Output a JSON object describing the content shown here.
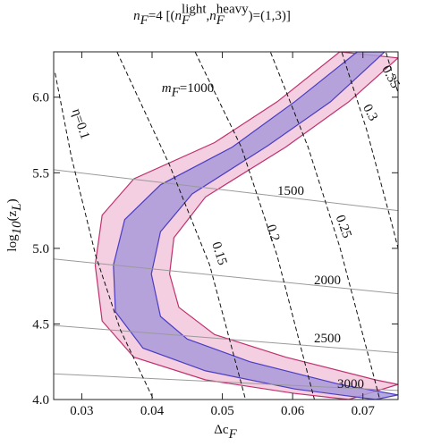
{
  "chart_data": {
    "type": "contour",
    "title": [
      "n",
      "F",
      "=4 [(",
      "n",
      "F",
      "light",
      ", ",
      "n",
      "F",
      "heavy",
      ")=(1,3)]"
    ],
    "x_label": [
      "Δc",
      "F"
    ],
    "y_label": [
      "log",
      "10",
      "(z",
      "L",
      ")"
    ],
    "xlim": [
      0.026,
      0.075
    ],
    "ylim": [
      4.0,
      6.3
    ],
    "xticks": [
      0.03,
      0.04,
      0.05,
      0.06,
      0.07
    ],
    "yticks": [
      {
        "value": 4,
        "label": "4.0"
      },
      4.5,
      {
        "value": 5,
        "label": "5.0"
      },
      5.5,
      {
        "value": 6,
        "label": "6.0"
      }
    ],
    "bands": [
      {
        "fill": "#f2c6dc",
        "color": "#c0306e",
        "x": [
          0.0667,
          0.0578,
          0.0489,
          0.0374,
          0.0329,
          0.0319,
          0.0329,
          0.0374,
          0.0476,
          0.0603,
          0.068,
          0.075,
          0.0718,
          0.059,
          0.0489,
          0.0438,
          0.0425,
          0.0431,
          0.0476,
          0.059,
          0.068,
          0.075
        ],
        "y": [
          6.3,
          5.97,
          5.7,
          5.46,
          5.22,
          4.89,
          4.52,
          4.28,
          4.13,
          4.04,
          4.0,
          4.1,
          4.13,
          4.28,
          4.43,
          4.61,
          4.83,
          5.07,
          5.34,
          5.67,
          5.97,
          6.26
        ]
      },
      {
        "fill": "#a99ad8",
        "color": "#4a3cc4",
        "x": [
          0.0692,
          0.0603,
          0.0514,
          0.0412,
          0.0361,
          0.0345,
          0.0348,
          0.0387,
          0.0476,
          0.0603,
          0.0718,
          0.075,
          0.0667,
          0.0539,
          0.045,
          0.0412,
          0.0399,
          0.0412,
          0.0457,
          0.0565,
          0.0654,
          0.0731
        ],
        "y": [
          6.3,
          5.97,
          5.67,
          5.42,
          5.19,
          4.89,
          4.58,
          4.34,
          4.19,
          4.07,
          4.0,
          4.03,
          4.1,
          4.25,
          4.4,
          4.55,
          4.83,
          5.11,
          5.36,
          5.68,
          5.97,
          6.3
        ]
      }
    ],
    "eta_contours": [
      {
        "label": "η=0.1",
        "x": [
          0.0262,
          0.0285,
          0.032,
          0.0355,
          0.0402
        ],
        "y": [
          6.16,
          5.61,
          4.95,
          4.46,
          4.0
        ]
      },
      {
        "label": "0.15",
        "x": [
          0.0346,
          0.0425,
          0.0482,
          0.0533
        ],
        "y": [
          6.34,
          5.55,
          4.89,
          4.0
        ]
      },
      {
        "label": "0.2",
        "x": [
          0.0457,
          0.0527,
          0.0578,
          0.0622,
          0.0631
        ],
        "y": [
          6.34,
          5.67,
          4.95,
          4.16,
          4.0
        ]
      },
      {
        "label": "0.25",
        "x": [
          0.0565,
          0.0622,
          0.0667,
          0.0705,
          0.0724
        ],
        "y": [
          6.34,
          5.67,
          5.01,
          4.34,
          4.0
        ]
      },
      {
        "label": "0.3",
        "x": [
          0.0667,
          0.0705,
          0.0743,
          0.075
        ],
        "y": [
          6.34,
          5.79,
          5.13,
          5.0
        ]
      },
      {
        "label": "0.35",
        "x": [
          0.073,
          0.075
        ],
        "y": [
          6.34,
          6.03
        ]
      }
    ],
    "mass_contours": [
      {
        "label": [
          "m",
          "F",
          "=1000"
        ],
        "x": [],
        "y": []
      },
      {
        "label": [
          "1500"
        ],
        "x": [
          0.026,
          0.075
        ],
        "y": [
          5.52,
          5.25
        ]
      },
      {
        "label": [
          "2000"
        ],
        "x": [
          0.026,
          0.075
        ],
        "y": [
          4.93,
          4.7
        ]
      },
      {
        "label": [
          "2500"
        ],
        "x": [
          0.026,
          0.075
        ],
        "y": [
          4.49,
          4.31
        ]
      },
      {
        "label": [
          "3000"
        ],
        "x": [
          0.026,
          0.075
        ],
        "y": [
          4.17,
          4.06
        ]
      }
    ]
  }
}
